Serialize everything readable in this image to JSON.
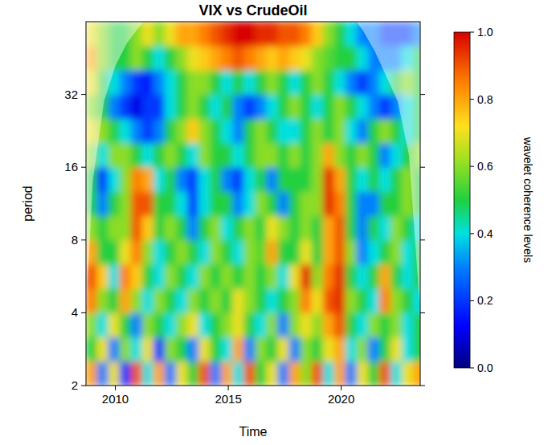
{
  "chart_data": {
    "type": "heatmap",
    "title": "VIX vs CrudeOil",
    "x_label": "Time",
    "y_label": "period",
    "log": "y",
    "xlim": [
      2008.7,
      2023.5
    ],
    "ylim": [
      2,
      64
    ],
    "xticks": [
      2010,
      2015,
      2020
    ],
    "yticks": [
      2,
      4,
      8,
      16,
      32
    ],
    "x": [
      2008.95,
      2009.45,
      2009.95,
      2010.45,
      2010.95,
      2011.45,
      2011.95,
      2012.45,
      2012.95,
      2013.45,
      2013.95,
      2014.45,
      2014.95,
      2015.45,
      2015.95,
      2016.45,
      2016.95,
      2017.45,
      2017.95,
      2018.45,
      2018.95,
      2019.45,
      2019.95,
      2020.45,
      2020.95,
      2021.45,
      2021.95,
      2022.45,
      2022.95,
      2023.45
    ],
    "y": [
      2.24,
      2.83,
      3.56,
      4.49,
      5.66,
      7.13,
      8.98,
      11.31,
      14.25,
      17.96,
      22.6,
      28.5,
      35.9,
      45.3,
      57.0
    ],
    "z": [
      [
        0.8,
        0.3,
        0.7,
        0.2,
        0.9,
        0.4,
        0.8,
        0.3,
        0.7,
        0.5,
        0.9,
        0.3,
        0.8,
        0.4,
        0.9,
        0.5,
        0.7,
        0.3,
        0.8,
        0.6,
        0.9,
        0.4,
        0.8,
        0.3,
        0.7,
        0.5,
        0.9,
        0.4,
        0.7,
        0.8
      ],
      [
        0.5,
        0.7,
        0.3,
        0.6,
        0.4,
        0.7,
        0.2,
        0.6,
        0.5,
        0.3,
        0.7,
        0.5,
        0.4,
        0.8,
        0.3,
        0.6,
        0.5,
        0.7,
        0.3,
        0.6,
        0.5,
        0.7,
        0.8,
        0.4,
        0.6,
        0.3,
        0.5,
        0.7,
        0.4,
        0.5
      ],
      [
        0.6,
        0.4,
        0.7,
        0.5,
        0.3,
        0.6,
        0.5,
        0.4,
        0.6,
        0.7,
        0.4,
        0.5,
        0.6,
        0.7,
        0.5,
        0.4,
        0.6,
        0.3,
        0.6,
        0.7,
        0.6,
        0.8,
        0.9,
        0.5,
        0.4,
        0.6,
        0.5,
        0.6,
        0.4,
        0.5
      ],
      [
        0.85,
        0.6,
        0.5,
        0.8,
        0.6,
        0.4,
        0.6,
        0.5,
        0.4,
        0.6,
        0.5,
        0.6,
        0.5,
        0.7,
        0.6,
        0.5,
        0.4,
        0.5,
        0.6,
        0.85,
        0.7,
        0.9,
        0.95,
        0.6,
        0.5,
        0.4,
        0.85,
        0.6,
        0.5,
        0.4
      ],
      [
        0.9,
        0.75,
        0.4,
        0.85,
        0.75,
        0.5,
        0.4,
        0.6,
        0.5,
        0.4,
        0.6,
        0.5,
        0.6,
        0.5,
        0.6,
        0.5,
        0.6,
        0.4,
        0.7,
        0.95,
        0.6,
        0.85,
        0.95,
        0.5,
        0.4,
        0.5,
        0.8,
        0.5,
        0.4,
        0.5
      ],
      [
        0.8,
        0.5,
        0.5,
        0.7,
        0.85,
        0.6,
        0.4,
        0.5,
        0.6,
        0.5,
        0.4,
        0.6,
        0.5,
        0.4,
        0.6,
        0.55,
        0.8,
        0.5,
        0.5,
        0.7,
        0.5,
        0.8,
        0.9,
        0.6,
        0.3,
        0.4,
        0.5,
        0.6,
        0.4,
        0.5
      ],
      [
        0.6,
        0.5,
        0.6,
        0.6,
        0.9,
        0.75,
        0.5,
        0.6,
        0.5,
        0.3,
        0.5,
        0.6,
        0.4,
        0.5,
        0.6,
        0.5,
        0.7,
        0.6,
        0.5,
        0.6,
        0.5,
        0.8,
        0.9,
        0.5,
        0.3,
        0.5,
        0.4,
        0.6,
        0.5,
        0.4
      ],
      [
        0.5,
        0.3,
        0.5,
        0.6,
        0.9,
        0.9,
        0.5,
        0.5,
        0.4,
        0.2,
        0.4,
        0.5,
        0.5,
        0.3,
        0.4,
        0.6,
        0.5,
        0.3,
        0.5,
        0.6,
        0.6,
        0.95,
        0.85,
        0.5,
        0.3,
        0.3,
        0.5,
        0.5,
        0.6,
        0.5
      ],
      [
        0.5,
        0.2,
        0.4,
        0.6,
        0.85,
        0.8,
        0.4,
        0.5,
        0.3,
        0.2,
        0.4,
        0.5,
        0.3,
        0.2,
        0.4,
        0.5,
        0.3,
        0.5,
        0.5,
        0.5,
        0.6,
        0.95,
        0.8,
        0.5,
        0.4,
        0.5,
        0.4,
        0.5,
        0.6,
        0.5
      ],
      [
        0.6,
        0.4,
        0.6,
        0.6,
        0.5,
        0.4,
        0.5,
        0.6,
        0.5,
        0.4,
        0.6,
        0.5,
        0.5,
        0.4,
        0.5,
        0.6,
        0.6,
        0.5,
        0.6,
        0.5,
        0.6,
        0.8,
        0.6,
        0.5,
        0.6,
        0.5,
        0.3,
        0.4,
        0.5,
        0.6
      ],
      [
        0.7,
        0.6,
        0.5,
        0.4,
        0.3,
        0.2,
        0.3,
        0.5,
        0.6,
        0.75,
        0.6,
        0.5,
        0.4,
        0.3,
        0.5,
        0.6,
        0.5,
        0.4,
        0.4,
        0.5,
        0.6,
        0.5,
        0.6,
        0.4,
        0.3,
        0.5,
        0.6,
        0.5,
        0.4,
        0.5
      ],
      [
        0.6,
        0.5,
        0.3,
        0.2,
        0.1,
        0.2,
        0.2,
        0.4,
        0.5,
        0.6,
        0.5,
        0.4,
        0.5,
        0.3,
        0.2,
        0.3,
        0.4,
        0.5,
        0.6,
        0.5,
        0.4,
        0.5,
        0.6,
        0.5,
        0.4,
        0.3,
        0.2,
        0.3,
        0.4,
        0.5
      ],
      [
        0.7,
        0.5,
        0.4,
        0.3,
        0.2,
        0.15,
        0.3,
        0.4,
        0.5,
        0.6,
        0.6,
        0.5,
        0.4,
        0.5,
        0.4,
        0.5,
        0.6,
        0.5,
        0.4,
        0.5,
        0.6,
        0.5,
        0.4,
        0.3,
        0.2,
        0.3,
        0.4,
        0.5,
        0.6,
        0.5
      ],
      [
        0.8,
        0.6,
        0.5,
        0.5,
        0.6,
        0.5,
        0.4,
        0.5,
        0.6,
        0.7,
        0.75,
        0.8,
        0.85,
        0.9,
        0.85,
        0.8,
        0.75,
        0.8,
        0.75,
        0.7,
        0.6,
        0.55,
        0.5,
        0.5,
        0.4,
        0.3,
        0.3,
        0.3,
        0.4,
        0.5
      ],
      [
        0.7,
        0.6,
        0.5,
        0.5,
        0.6,
        0.7,
        0.6,
        0.7,
        0.8,
        0.8,
        0.85,
        0.9,
        0.95,
        1.0,
        1.0,
        0.95,
        0.95,
        0.9,
        0.9,
        0.85,
        0.75,
        0.6,
        0.5,
        0.4,
        0.3,
        0.3,
        0.2,
        0.2,
        0.2,
        0.3
      ]
    ],
    "coi": {
      "x": [
        2008.7,
        2009.0,
        2009.5,
        2010.0,
        2010.5,
        2011.0,
        2011.5,
        2020.5,
        2021.0,
        2021.5,
        2022.0,
        2022.5,
        2023.0,
        2023.5
      ],
      "period": [
        4,
        14,
        30,
        42,
        52,
        60,
        68,
        68,
        58,
        48,
        38,
        30,
        18,
        4
      ]
    },
    "colorbar": {
      "label": "wavelet coherence levels",
      "range": [
        0,
        1
      ],
      "ticks": [
        {
          "value": 0,
          "label": "0.0"
        },
        {
          "value": 0.2,
          "label": "0.2"
        },
        {
          "value": 0.4,
          "label": "0.4"
        },
        {
          "value": 0.6,
          "label": "0.6"
        },
        {
          "value": 0.8,
          "label": "0.8"
        },
        {
          "value": 1,
          "label": "1.0"
        }
      ]
    }
  }
}
